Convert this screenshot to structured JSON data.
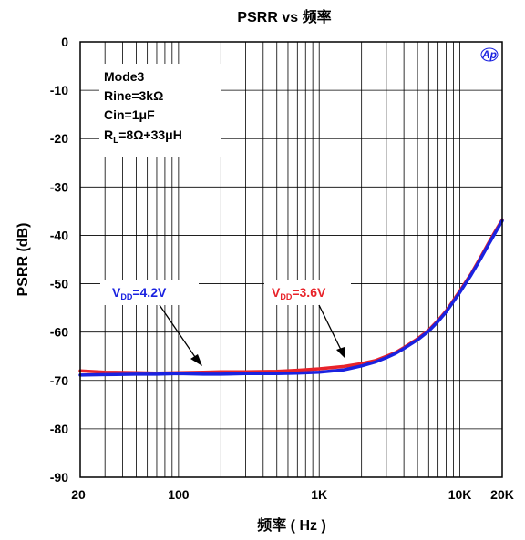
{
  "chart_data": {
    "type": "line",
    "title": "PSRR vs 频率",
    "xlabel": "频率 ( Hz )",
    "ylabel": "PSRR (dB)",
    "xscale": "log",
    "xlim": [
      20,
      20000
    ],
    "ylim": [
      -90,
      0
    ],
    "grid": true,
    "x_tick_labels": [
      {
        "value": 20,
        "label": "20"
      },
      {
        "value": 100,
        "label": "100"
      },
      {
        "value": 1000,
        "label": "1K"
      },
      {
        "value": 10000,
        "label": "10K"
      },
      {
        "value": 20000,
        "label": "20K"
      }
    ],
    "y_ticks": [
      0,
      -10,
      -20,
      -30,
      -40,
      -50,
      -60,
      -70,
      -80,
      -90
    ],
    "conditions": {
      "mode": "Mode3",
      "rine": "Rine=3kΩ",
      "cin": "Cin=1μF",
      "rl_prefix": "R",
      "rl_sub": "L",
      "rl_value": "=8Ω+33μH"
    },
    "logo": "Ap",
    "series": [
      {
        "name": "VDD=3.6V",
        "label_main": "V",
        "label_sub": "DD",
        "label_value": "=3.6V",
        "color": "#e8232a",
        "x": [
          20,
          30,
          50,
          70,
          100,
          150,
          200,
          300,
          500,
          700,
          1000,
          1500,
          2000,
          2500,
          3000,
          3500,
          4000,
          5000,
          6000,
          7000,
          8000,
          10000,
          12000,
          14000,
          16000,
          18000,
          20000
        ],
        "y": [
          -68.0,
          -68.3,
          -68.4,
          -68.5,
          -68.4,
          -68.3,
          -68.2,
          -68.2,
          -68.1,
          -67.9,
          -67.6,
          -67.1,
          -66.5,
          -65.9,
          -65.0,
          -64.2,
          -63.2,
          -61.4,
          -59.6,
          -57.6,
          -55.6,
          -51.5,
          -48.0,
          -44.6,
          -41.6,
          -39.0,
          -36.8
        ]
      },
      {
        "name": "VDD=4.2V",
        "label_main": "V",
        "label_sub": "DD",
        "label_value": "=4.2V",
        "color": "#1a22e0",
        "x": [
          20,
          30,
          50,
          70,
          100,
          150,
          200,
          300,
          500,
          700,
          1000,
          1500,
          2000,
          2500,
          3000,
          3500,
          4000,
          5000,
          6000,
          7000,
          8000,
          10000,
          12000,
          14000,
          16000,
          18000,
          20000
        ],
        "y": [
          -68.9,
          -68.8,
          -68.7,
          -68.7,
          -68.6,
          -68.7,
          -68.7,
          -68.6,
          -68.6,
          -68.5,
          -68.3,
          -67.8,
          -67.0,
          -66.2,
          -65.3,
          -64.4,
          -63.4,
          -61.6,
          -59.8,
          -57.8,
          -55.8,
          -51.8,
          -48.2,
          -44.9,
          -41.9,
          -39.3,
          -37.0
        ]
      }
    ]
  }
}
